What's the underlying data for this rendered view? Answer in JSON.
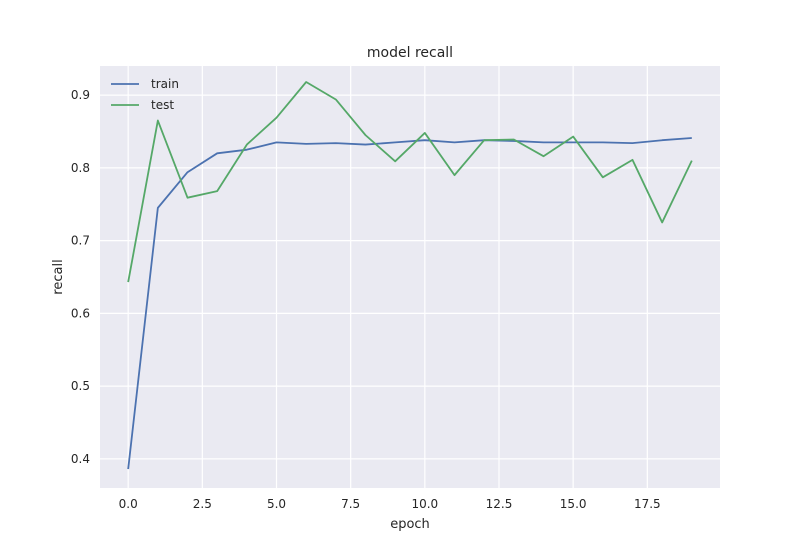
{
  "chart_data": {
    "type": "line",
    "title": "model recall",
    "xlabel": "epoch",
    "ylabel": "recall",
    "xlim": [
      -0.95,
      19.95
    ],
    "ylim": [
      0.36,
      0.94
    ],
    "xticks": [
      0.0,
      2.5,
      5.0,
      7.5,
      10.0,
      12.5,
      15.0,
      17.5
    ],
    "xtick_labels": [
      "0.0",
      "2.5",
      "5.0",
      "7.5",
      "10.0",
      "12.5",
      "15.0",
      "17.5"
    ],
    "yticks": [
      0.4,
      0.5,
      0.6,
      0.7,
      0.8,
      0.9
    ],
    "ytick_labels": [
      "0.4",
      "0.5",
      "0.6",
      "0.7",
      "0.8",
      "0.9"
    ],
    "grid": true,
    "legend_position": "top-left",
    "x": [
      0,
      1,
      2,
      3,
      4,
      5,
      6,
      7,
      8,
      9,
      10,
      11,
      12,
      13,
      14,
      15,
      16,
      17,
      18,
      19
    ],
    "series": [
      {
        "name": "train",
        "color": "#4c72b0",
        "values": [
          0.386,
          0.745,
          0.794,
          0.82,
          0.825,
          0.835,
          0.833,
          0.834,
          0.832,
          0.835,
          0.838,
          0.835,
          0.838,
          0.837,
          0.835,
          0.835,
          0.835,
          0.834,
          0.838,
          0.841
        ]
      },
      {
        "name": "test",
        "color": "#55a868",
        "values": [
          0.643,
          0.865,
          0.759,
          0.768,
          0.832,
          0.869,
          0.918,
          0.894,
          0.845,
          0.809,
          0.848,
          0.79,
          0.838,
          0.839,
          0.816,
          0.843,
          0.787,
          0.811,
          0.725,
          0.81
        ]
      }
    ]
  }
}
